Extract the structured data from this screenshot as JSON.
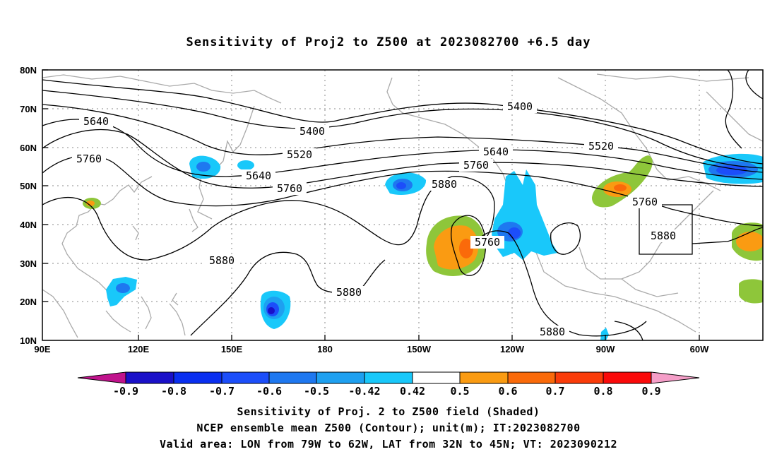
{
  "title": "Sensitivity of Proj2 to Z500 at 2023082700 +6.5 day",
  "lat_labels": [
    "80N",
    "70N",
    "60N",
    "50N",
    "40N",
    "30N",
    "20N",
    "10N"
  ],
  "lon_labels": [
    "90E",
    "120E",
    "150E",
    "180",
    "150W",
    "120W",
    "90W",
    "60W"
  ],
  "contour_labels": {
    "c5640_a": "5640",
    "c5760_a": "5760",
    "c5400_a": "5400",
    "c5520_a": "5520",
    "c5640_b": "5640",
    "c5760_b": "5760",
    "c5880_a": "5880",
    "c5880_b": "5880",
    "c5400_b": "5400",
    "c5640_c": "5640",
    "c5760_c": "5760",
    "c5880_c": "5880",
    "c5520_b": "5520",
    "c5760_d": "5760",
    "c5880_d": "5880",
    "c5760_e": "5760",
    "c5880_e": "5880"
  },
  "colorbar": {
    "labels": [
      "-0.9",
      "-0.8",
      "-0.7",
      "-0.6",
      "-0.5",
      "-0.42",
      "0.42",
      "0.5",
      "0.6",
      "0.7",
      "0.8",
      "0.9"
    ],
    "colors": {
      "low_ext": "#c0138c",
      "c1": "#1a10c8",
      "c2": "#0a2ff0",
      "c3": "#1c4efa",
      "c4": "#1e78f0",
      "c5": "#1ea0f0",
      "c6": "#19c8fa",
      "neutral": "#ffffff",
      "p1": "#8ec63a",
      "p2": "#fa9b12",
      "p3": "#fa6a0a",
      "p4": "#fa3c0a",
      "p5": "#fa0a0a",
      "high_ext": "#f59ec8"
    }
  },
  "captions": {
    "line1": "Sensitivity of Proj. 2 to Z500 field (Shaded)",
    "line2": "NCEP ensemble mean Z500 (Contour); unit(m); IT:2023082700",
    "line3": "Valid area: LON from 79W to 62W, LAT from 32N to 45N; VT: 2023090212"
  }
}
